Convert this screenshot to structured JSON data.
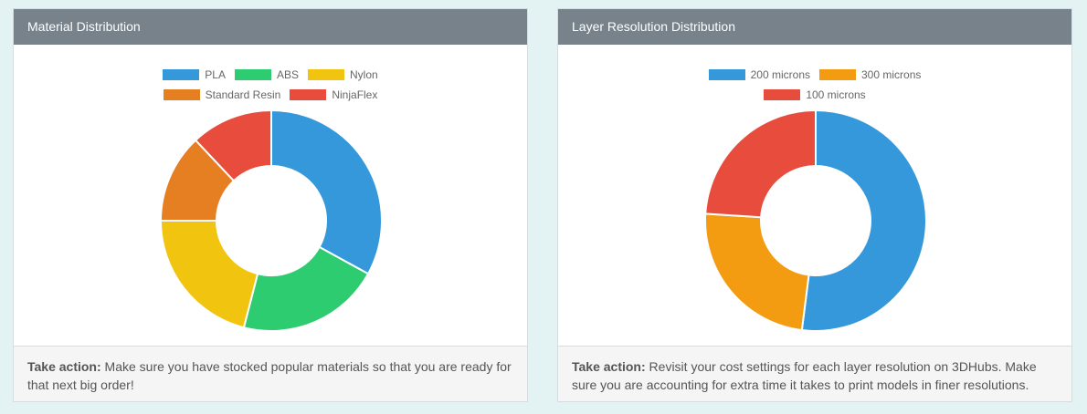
{
  "panels": [
    {
      "title": "Material Distribution",
      "footer": {
        "action_label": "Take action:",
        "text": "Make sure you have stocked popular materials so that you are ready for that next big order!"
      },
      "legend_rows": [
        [
          "PLA",
          "ABS",
          "Nylon"
        ],
        [
          "Standard Resin",
          "NinjaFlex"
        ]
      ]
    },
    {
      "title": "Layer Resolution Distribution",
      "footer": {
        "action_label": "Take action:",
        "text": "Revisit your cost settings for each layer resolution on 3DHubs. Make sure you are accounting for extra time it takes to print models in finer resolutions."
      },
      "legend_rows": [
        [
          "200 microns",
          "300 microns"
        ],
        [
          "100 microns"
        ]
      ]
    }
  ],
  "chart_data": [
    {
      "type": "pie",
      "title": "Material Distribution",
      "categories": [
        "PLA",
        "ABS",
        "Nylon",
        "Standard Resin",
        "NinjaFlex"
      ],
      "values": [
        33,
        21,
        21,
        13,
        12
      ],
      "unit": "percent (estimated)",
      "colors": [
        "#3498db",
        "#2ecc71",
        "#f1c40f",
        "#e67e22",
        "#e74c3c"
      ],
      "legend_position": "top"
    },
    {
      "type": "pie",
      "title": "Layer Resolution Distribution",
      "categories": [
        "200 microns",
        "300 microns",
        "100 microns"
      ],
      "values": [
        52,
        24,
        24
      ],
      "unit": "percent (estimated)",
      "colors": [
        "#3498db",
        "#f39c12",
        "#e74c3c"
      ],
      "legend_position": "top"
    }
  ]
}
